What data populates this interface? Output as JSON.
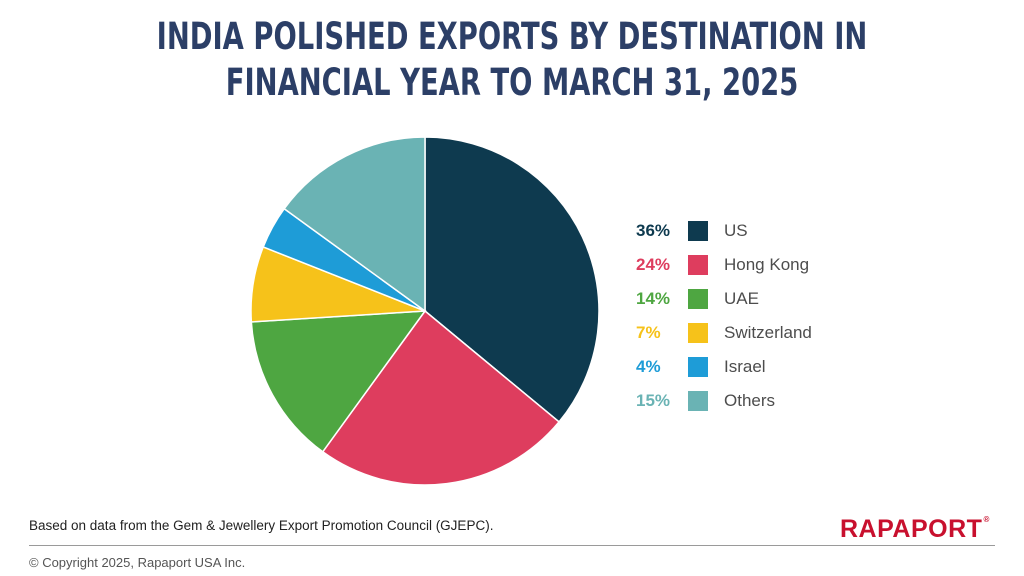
{
  "title_line1": "INDIA POLISHED EXPORTS BY DESTINATION IN",
  "title_line2": "FINANCIAL YEAR TO MARCH 31, 2025",
  "source": "Based on data from the Gem & Jewellery Export Promotion Council (GJEPC).",
  "copyright": "© Copyright 2025, Rapaport USA Inc.",
  "logo": "RAPAPORT",
  "logo_mark": "®",
  "chart_data": {
    "type": "pie",
    "title": "INDIA POLISHED EXPORTS BY DESTINATION IN FINANCIAL YEAR TO MARCH 31, 2025",
    "legend_position": "right",
    "slices": [
      {
        "label": "US",
        "value": 36,
        "pct_label": "36%",
        "color": "#0e3a4f"
      },
      {
        "label": "Hong Kong",
        "value": 24,
        "pct_label": "24%",
        "color": "#de3d5e"
      },
      {
        "label": "UAE",
        "value": 14,
        "pct_label": "14%",
        "color": "#4ea641"
      },
      {
        "label": "Switzerland",
        "value": 7,
        "pct_label": "7%",
        "color": "#f6c21a"
      },
      {
        "label": "Israel",
        "value": 4,
        "pct_label": "4%",
        "color": "#1e9cd7"
      },
      {
        "label": "Others",
        "value": 15,
        "pct_label": "15%",
        "color": "#6ab3b4"
      }
    ]
  }
}
